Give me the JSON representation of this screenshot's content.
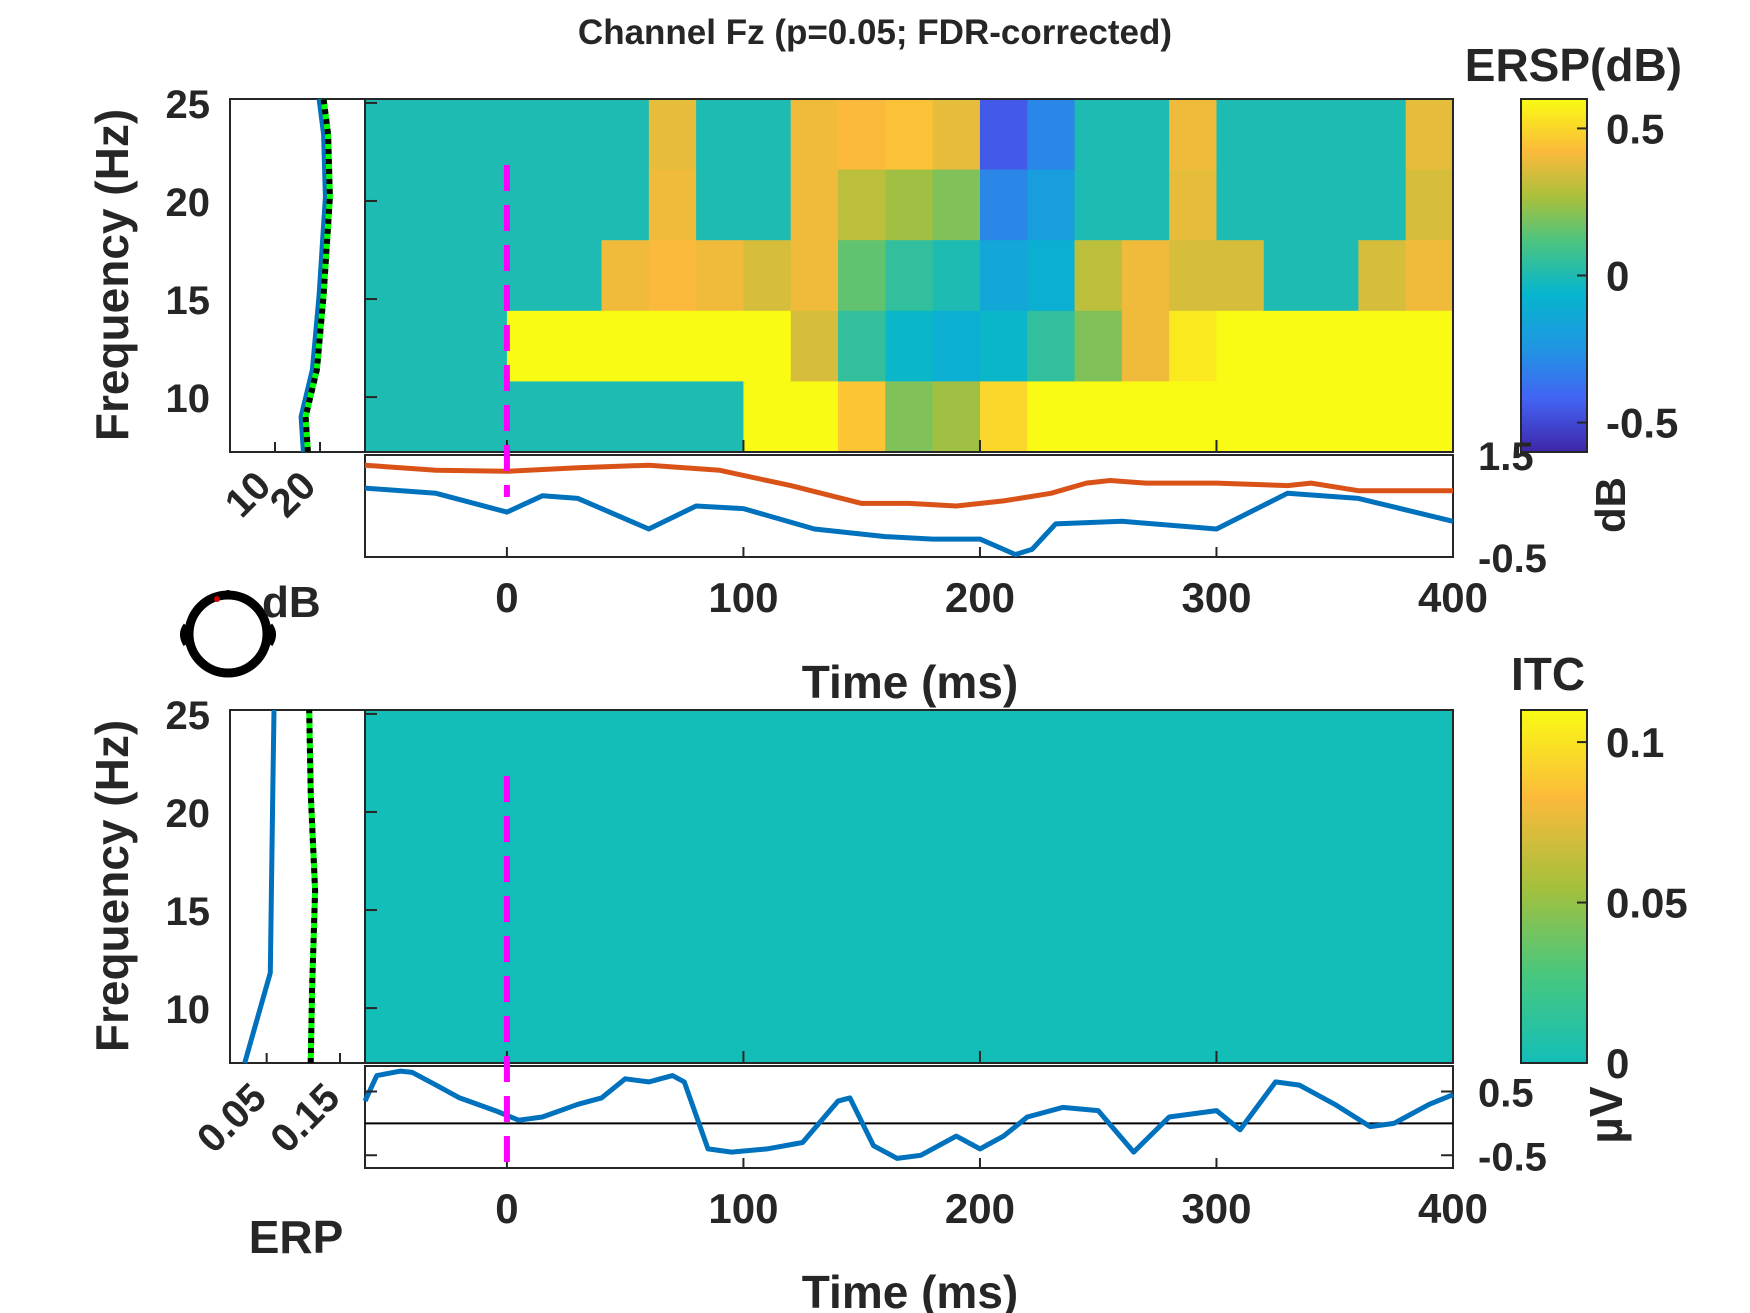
{
  "title": "Channel Fz (p=0.05; FDR-corrected)",
  "chart_data": [
    {
      "type": "heatmap",
      "panel": "ERSP",
      "colorbar_title": "ERSP(dB)",
      "colorbar_ticks": [
        "0.5",
        "0",
        "-0.5"
      ],
      "colorbar_tick_values": [
        0.5,
        0,
        -0.5
      ],
      "colorbar_range": [
        -0.6,
        0.6
      ],
      "colormap": "parula",
      "ylabel": "Frequency (Hz)",
      "yticks": [
        "10",
        "15",
        "20",
        "25"
      ],
      "ylim": [
        7.2,
        25.2
      ],
      "xlim": [
        -60,
        400
      ],
      "x": [
        -60,
        -40,
        -20,
        0,
        20,
        40,
        60,
        80,
        100,
        120,
        140,
        160,
        180,
        200,
        220,
        240,
        260,
        280,
        300,
        320,
        340,
        360,
        380,
        400
      ],
      "freq_bands": [
        [
          21.6,
          25.2
        ],
        [
          18,
          21.6
        ],
        [
          14.4,
          18
        ],
        [
          10.8,
          14.4
        ],
        [
          7.2,
          10.8
        ]
      ],
      "values": [
        [
          0,
          0,
          0,
          0,
          0,
          0,
          0.38,
          0,
          0,
          0.4,
          0.42,
          0.44,
          0.38,
          -0.45,
          -0.3,
          0,
          0,
          0.4,
          0,
          0,
          0,
          0,
          0.38,
          0.4
        ],
        [
          0,
          0,
          0,
          0,
          0,
          0,
          0.4,
          0,
          0,
          0.4,
          0.3,
          0.25,
          0.2,
          -0.3,
          -0.2,
          0,
          0,
          0.38,
          0,
          0,
          0,
          0,
          0.35,
          0.25
        ],
        [
          0,
          0,
          0,
          0,
          0,
          0.4,
          0.42,
          0.4,
          0.35,
          0.4,
          0.15,
          0.05,
          0.0,
          -0.15,
          -0.1,
          0.3,
          0.4,
          0.35,
          0.35,
          0,
          0,
          0.35,
          0.4,
          0.3
        ],
        [
          0,
          0,
          0,
          0.6,
          0.6,
          0.6,
          0.6,
          0.6,
          0.6,
          0.35,
          0.05,
          -0.05,
          -0.1,
          -0.05,
          0.05,
          0.2,
          0.4,
          0.55,
          0.6,
          0.6,
          0.6,
          0.6,
          0.6,
          0.5
        ],
        [
          0,
          0,
          0,
          0,
          0,
          0,
          0,
          0,
          0.6,
          0.6,
          0.45,
          0.2,
          0.25,
          0.5,
          0.6,
          0.6,
          0.6,
          0.6,
          0.6,
          0.6,
          0.6,
          0.6,
          0.6,
          0.6
        ]
      ],
      "event_marker_x": 0
    },
    {
      "type": "line",
      "panel": "ERSP-marginal-time",
      "ylabel": "dB",
      "yticks": [
        "1.5",
        "-0.5"
      ],
      "ylim": [
        -0.5,
        1.5
      ],
      "xlabel": "Time (ms)",
      "xticks": [
        "0",
        "100",
        "200",
        "300",
        "400"
      ],
      "xlim": [
        -60,
        400
      ],
      "series": [
        {
          "color": "#D95319",
          "x": [
            -60,
            -30,
            0,
            30,
            60,
            90,
            120,
            150,
            170,
            190,
            210,
            230,
            245,
            255,
            270,
            300,
            330,
            340,
            360,
            400
          ],
          "values": [
            1.3,
            1.2,
            1.18,
            1.25,
            1.3,
            1.2,
            0.9,
            0.55,
            0.55,
            0.5,
            0.6,
            0.75,
            0.95,
            1.0,
            0.95,
            0.95,
            0.9,
            0.95,
            0.8,
            0.8
          ]
        },
        {
          "color": "#0072BD",
          "x": [
            -60,
            -30,
            0,
            15,
            30,
            60,
            80,
            100,
            130,
            160,
            180,
            200,
            215,
            222,
            232,
            260,
            300,
            330,
            360,
            400
          ],
          "values": [
            0.85,
            0.75,
            0.38,
            0.7,
            0.65,
            0.05,
            0.5,
            0.45,
            0.05,
            -0.1,
            -0.15,
            -0.15,
            -0.45,
            -0.35,
            0.15,
            0.2,
            0.05,
            0.75,
            0.65,
            0.2
          ]
        }
      ]
    },
    {
      "type": "line",
      "panel": "ERSP-marginal-frequency",
      "xticks": [
        "10",
        "20"
      ],
      "ylim": [
        7.2,
        25.2
      ],
      "series": [
        {
          "color": "#0072BD",
          "x": [
            16.3,
            15.8,
            18.3,
            19.8,
            21.2,
            20.8,
            19.8
          ],
          "freq": [
            7.2,
            9.0,
            11.4,
            15.2,
            20.2,
            23.4,
            25.2
          ]
        },
        {
          "color": "#00FF00",
          "style": "dotted-black",
          "x": [
            17.3,
            16.8,
            19.3,
            20.8,
            22.2,
            21.8,
            20.8
          ],
          "freq": [
            7.2,
            9.0,
            11.4,
            15.2,
            20.2,
            23.4,
            25.2
          ]
        }
      ]
    },
    {
      "type": "heatmap",
      "panel": "ITC",
      "colorbar_title": "ITC",
      "colorbar_ticks": [
        "0.1",
        "0.05",
        "0"
      ],
      "colorbar_tick_values": [
        0.1,
        0.05,
        0
      ],
      "colorbar_range": [
        0,
        0.11
      ],
      "ylabel": "Frequency (Hz)",
      "yticks": [
        "10",
        "15",
        "20",
        "25"
      ],
      "ylim": [
        7.2,
        25.2
      ],
      "xlim": [
        -60,
        400
      ],
      "value": 0,
      "event_marker_x": 0
    },
    {
      "type": "line",
      "panel": "ERP",
      "ylabel": "µV",
      "yticks": [
        "0.5",
        "-0.5"
      ],
      "ylim": [
        -0.7,
        0.9
      ],
      "xlabel": "Time (ms)",
      "xticks": [
        "0",
        "100",
        "200",
        "300",
        "400"
      ],
      "xlim": [
        -60,
        400
      ],
      "series": [
        {
          "color": "#0072BD",
          "x": [
            -60,
            -55,
            -45,
            -40,
            -30,
            -20,
            -5,
            5,
            15,
            30,
            40,
            50,
            60,
            70,
            75,
            85,
            95,
            110,
            125,
            140,
            145,
            155,
            165,
            175,
            190,
            200,
            210,
            220,
            235,
            250,
            265,
            280,
            300,
            310,
            325,
            335,
            350,
            365,
            375,
            390,
            400
          ],
          "values": [
            0.35,
            0.75,
            0.82,
            0.8,
            0.6,
            0.4,
            0.2,
            0.05,
            0.1,
            0.3,
            0.4,
            0.7,
            0.65,
            0.75,
            0.65,
            -0.4,
            -0.45,
            -0.4,
            -0.3,
            0.35,
            0.4,
            -0.35,
            -0.55,
            -0.5,
            -0.2,
            -0.4,
            -0.2,
            0.1,
            0.25,
            0.2,
            -0.45,
            0.1,
            0.2,
            -0.1,
            0.65,
            0.6,
            0.3,
            -0.05,
            0,
            0.3,
            0.45
          ]
        },
        {
          "color": "#000000",
          "x": [
            -60,
            400
          ],
          "values": [
            0,
            0
          ]
        }
      ]
    },
    {
      "type": "line",
      "panel": "ITC-marginal-frequency",
      "xlabel": "ERP",
      "xticks": [
        "0.05",
        "0.15"
      ],
      "ylim": [
        7.2,
        25.2
      ],
      "series": [
        {
          "color": "#0072BD",
          "x": [
            0.02,
            0.055,
            0.058,
            0.06
          ],
          "freq": [
            7.2,
            11.8,
            20,
            25.2
          ]
        },
        {
          "color": "#00FF00",
          "style": "dotted-black",
          "x": [
            0.11,
            0.112,
            0.116,
            0.11,
            0.108
          ],
          "freq": [
            7.2,
            11.0,
            16,
            21,
            25.2
          ]
        }
      ]
    }
  ],
  "labels": {
    "head_label": "dB",
    "time_label_top": "Time (ms)",
    "time_label_bottom": "Time (ms)",
    "erp_label": "ERP"
  }
}
